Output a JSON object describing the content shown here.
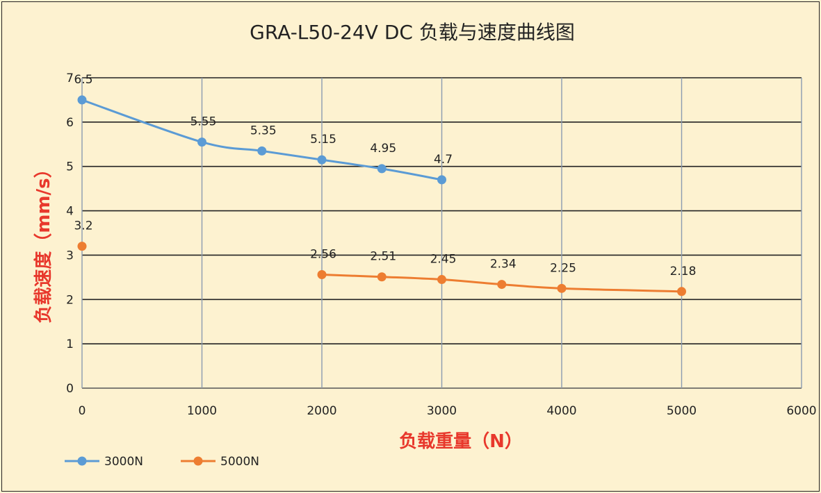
{
  "chart_data": {
    "type": "line",
    "title": "GRA-L50-24V DC 负载与速度曲线图",
    "xlabel": "负载重量（N）",
    "ylabel": "负载速度（mm/s）",
    "xlim": [
      0,
      6000
    ],
    "ylim": [
      0,
      7
    ],
    "x_ticks": [
      "0",
      "1000",
      "2000",
      "3000",
      "4000",
      "5000",
      "6000"
    ],
    "y_ticks": [
      "0",
      "1",
      "2",
      "3",
      "4",
      "5",
      "6",
      "7"
    ],
    "grid": true,
    "legend_position": "bottom-left",
    "series": [
      {
        "name": "3000N",
        "color": "#5b9bd5",
        "points": [
          {
            "x": 0,
            "y": 6.5,
            "label": "6.5"
          },
          {
            "x": 1000,
            "y": 5.55,
            "label": "5.55"
          },
          {
            "x": 1500,
            "y": 5.35,
            "label": "5.35"
          },
          {
            "x": 2000,
            "y": 5.15,
            "label": "5.15"
          },
          {
            "x": 2500,
            "y": 4.95,
            "label": "4.95"
          },
          {
            "x": 3000,
            "y": 4.7,
            "label": "4.7"
          }
        ]
      },
      {
        "name": "5000N",
        "color": "#ed7d31",
        "points": [
          {
            "x": 0,
            "y": 3.2,
            "label": "3.2"
          },
          {
            "x": 2000,
            "y": 2.56,
            "label": "2.56"
          },
          {
            "x": 2500,
            "y": 2.51,
            "label": "2.51"
          },
          {
            "x": 3000,
            "y": 2.45,
            "label": "2.45"
          },
          {
            "x": 3500,
            "y": 2.34,
            "label": "2.34"
          },
          {
            "x": 4000,
            "y": 2.25,
            "label": "2.25"
          },
          {
            "x": 5000,
            "y": 2.18,
            "label": "2.18"
          }
        ]
      }
    ]
  }
}
